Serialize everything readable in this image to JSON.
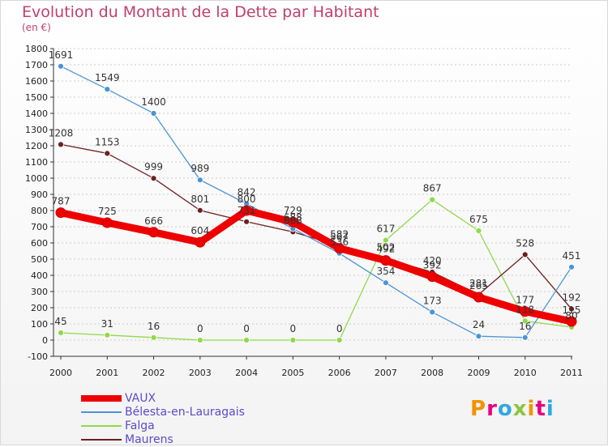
{
  "title": "Evolution du Montant de la Dette par Habitant",
  "subtitle": "(en €)",
  "logo_text": "Proxiti",
  "colors": {
    "title": "#c0406a",
    "legend_text": "#5b4cc7",
    "axis": "#333333",
    "grid": "#cccccc"
  },
  "chart_data": {
    "type": "line",
    "title": "Evolution du Montant de la Dette par Habitant",
    "subtitle": "(en €)",
    "x": [
      "2000",
      "2001",
      "2002",
      "2003",
      "2004",
      "2005",
      "2006",
      "2007",
      "2008",
      "2009",
      "2010",
      "2011"
    ],
    "ylim": [
      -100,
      1800
    ],
    "ytick_step": 100,
    "grid": "horizontal",
    "legend_position": "bottom-left",
    "series": [
      {
        "name": "VAUX",
        "color": "#ee0000",
        "values": [
          787,
          725,
          666,
          604,
          800,
          729,
          567,
          492,
          392,
          265,
          177,
          115
        ]
      },
      {
        "name": "Bélesta-en-Lauragais",
        "color": "#4a94d6",
        "values": [
          1691,
          1549,
          1400,
          989,
          842,
          688,
          536,
          354,
          173,
          24,
          16,
          451
        ]
      },
      {
        "name": "Falga",
        "color": "#8fd94a",
        "values": [
          45,
          31,
          16,
          0,
          0,
          0,
          0,
          617,
          867,
          675,
          118,
          80
        ]
      },
      {
        "name": "Maurens",
        "color": "#6e2020",
        "values": [
          1208,
          1153,
          999,
          801,
          731,
          668,
          582,
          502,
          420,
          281,
          528,
          192
        ]
      }
    ],
    "data_labels": [
      [
        "787",
        "725",
        "666",
        "604",
        "800",
        "729",
        "567",
        "492",
        "392",
        "265",
        "177",
        "115"
      ],
      [
        "1691",
        "1549",
        "1400",
        "989",
        "842",
        "688",
        "536",
        "354",
        "173",
        "24",
        "16",
        "451"
      ],
      [
        "45",
        "31",
        "16",
        "0",
        "0",
        "0",
        "0",
        "617",
        "867",
        "675",
        "118",
        "80"
      ],
      [
        "1208",
        "1153",
        "999",
        "801",
        "731",
        "668",
        "582",
        "502",
        "420",
        "281",
        "528",
        "192"
      ]
    ]
  }
}
